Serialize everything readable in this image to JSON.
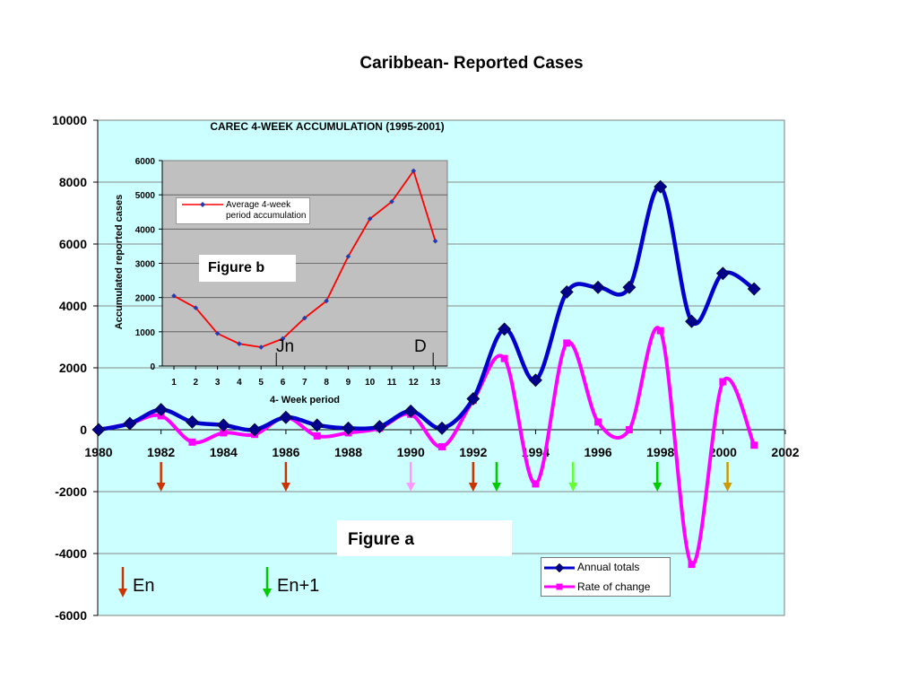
{
  "chart_data": [
    {
      "type": "line",
      "title": "Caribbean- Reported Cases",
      "xlim": [
        1980,
        2002
      ],
      "ylim": [
        -6000,
        10000
      ],
      "x_ticks": [
        1980,
        1982,
        1984,
        1986,
        1988,
        1990,
        1992,
        1994,
        1996,
        1998,
        2000,
        2002
      ],
      "y_ticks": [
        -6000,
        -4000,
        -2000,
        0,
        2000,
        4000,
        6000,
        8000,
        10000
      ],
      "grid": "horizontal",
      "legend": "bottom-right",
      "series": [
        {
          "name": "Annual totals",
          "color": "#0000cc",
          "marker": "diamond",
          "x": [
            1980,
            1981,
            1982,
            1983,
            1984,
            1985,
            1986,
            1987,
            1988,
            1989,
            1990,
            1991,
            1992,
            1993,
            1994,
            1995,
            1996,
            1997,
            1998,
            1999,
            2000,
            2001
          ],
          "values": [
            0,
            200,
            650,
            250,
            150,
            0,
            400,
            150,
            50,
            100,
            600,
            50,
            1000,
            3250,
            1600,
            4450,
            4600,
            4600,
            7850,
            3500,
            5050,
            4550
          ]
        },
        {
          "name": "Rate of change",
          "color": "#ff00ff",
          "marker": "square",
          "x": [
            1980,
            1981,
            1982,
            1983,
            1984,
            1985,
            1986,
            1987,
            1988,
            1989,
            1990,
            1991,
            1992,
            1993,
            1994,
            1995,
            1996,
            1997,
            1998,
            1999,
            2000,
            2001
          ],
          "values": [
            0,
            200,
            450,
            -400,
            -100,
            -150,
            400,
            -200,
            -100,
            50,
            500,
            -550,
            950,
            2300,
            -1750,
            2800,
            250,
            0,
            3200,
            -4350,
            1550,
            -500
          ]
        }
      ],
      "annotations": {
        "figure_label": "Figure a",
        "arrows": [
          {
            "x": 1982,
            "color": "#cc3300"
          },
          {
            "x": 1986,
            "color": "#cc3300"
          },
          {
            "x": 1990,
            "color": "#ff99ff"
          },
          {
            "x": 1992,
            "color": "#cc3300"
          },
          {
            "x": 1992.75,
            "color": "#00cc00"
          },
          {
            "x": 1995.2,
            "color": "#66ff33"
          },
          {
            "x": 1997.9,
            "color": "#00cc00"
          },
          {
            "x": 2000.15,
            "color": "#cc9900"
          }
        ],
        "key": [
          {
            "label": "En",
            "color": "#cc3300"
          },
          {
            "label": "En+1",
            "color": "#00cc00"
          }
        ]
      }
    },
    {
      "type": "line",
      "title": "CAREC 4-WEEK ACCUMULATION (1995-2001)",
      "xlabel": "4- Week period",
      "ylabel": "Accumulated reported cases",
      "categories": [
        "1",
        "2",
        "3",
        "4",
        "5",
        "6",
        "7",
        "8",
        "9",
        "10",
        "11",
        "12",
        "13"
      ],
      "ylim": [
        0,
        6000
      ],
      "y_ticks": [
        0,
        1000,
        2000,
        3000,
        4000,
        5000,
        6000
      ],
      "grid": "horizontal",
      "legend": "top-left",
      "series": [
        {
          "name": "Average 4-week period accumulation",
          "color": "#ff0000",
          "marker_color": "#1f3cb3",
          "values": [
            2050,
            1700,
            950,
            650,
            550,
            800,
            1400,
            1900,
            3200,
            4300,
            4800,
            5700,
            3650
          ]
        }
      ],
      "annotations": {
        "figure_label": "Figure b",
        "markers": [
          {
            "label": "Jn",
            "period": 5.7
          },
          {
            "label": "D",
            "period": 12.9
          }
        ]
      }
    }
  ]
}
